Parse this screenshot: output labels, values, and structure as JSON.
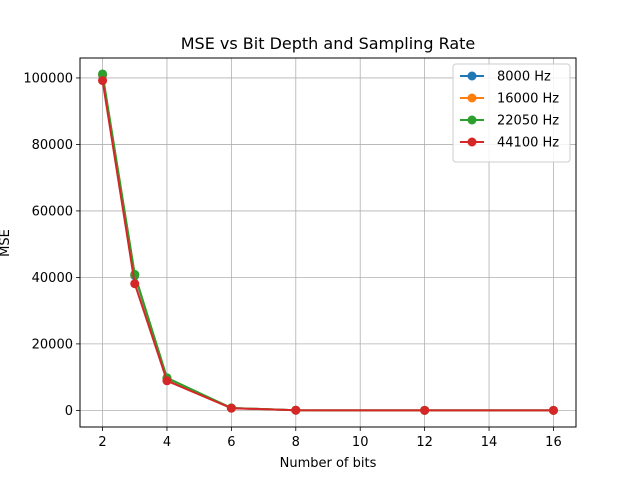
{
  "chart_data": {
    "type": "line",
    "title": "MSE vs Bit Depth and Sampling Rate",
    "xlabel": "Number of bits",
    "ylabel": "MSE",
    "x": [
      2,
      3,
      4,
      6,
      8,
      12,
      16
    ],
    "xlim": [
      1.3,
      16.7
    ],
    "ylim": [
      -5000,
      106000
    ],
    "xticks": [
      2,
      4,
      6,
      8,
      10,
      12,
      14,
      16
    ],
    "yticks": [
      0,
      20000,
      40000,
      60000,
      80000,
      100000
    ],
    "grid": true,
    "legend_position": "top-right",
    "series": [
      {
        "name": "8000 Hz",
        "color": "#1f77b4",
        "values": [
          100800,
          40500,
          9600,
          700,
          50,
          3,
          0
        ]
      },
      {
        "name": "16000 Hz",
        "color": "#ff7f0e",
        "values": [
          101000,
          40800,
          9700,
          700,
          50,
          3,
          0
        ]
      },
      {
        "name": "22050 Hz",
        "color": "#2ca02c",
        "values": [
          101200,
          40900,
          9800,
          700,
          50,
          3,
          0
        ]
      },
      {
        "name": "44100 Hz",
        "color": "#d62728",
        "values": [
          99200,
          38100,
          8900,
          650,
          45,
          3,
          0
        ]
      }
    ]
  }
}
